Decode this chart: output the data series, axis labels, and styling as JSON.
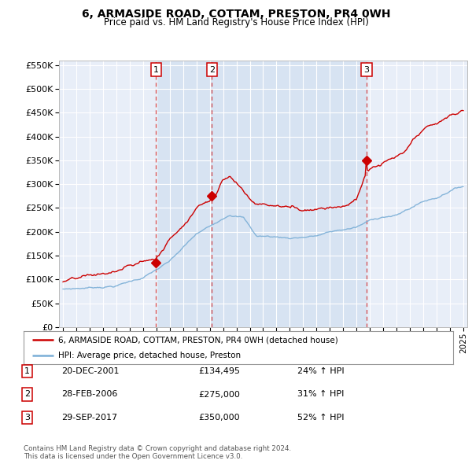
{
  "title": "6, ARMASIDE ROAD, COTTAM, PRESTON, PR4 0WH",
  "subtitle": "Price paid vs. HM Land Registry's House Price Index (HPI)",
  "sale_color": "#cc0000",
  "hpi_color": "#7aaed6",
  "vline_color": "#cc0000",
  "shade_color": "#d0dff0",
  "background_color": "#ffffff",
  "plot_bg_color": "#e8eef8",
  "grid_color": "#ffffff",
  "ylim": [
    0,
    560000
  ],
  "yticks": [
    0,
    50000,
    100000,
    150000,
    200000,
    250000,
    300000,
    350000,
    400000,
    450000,
    500000,
    550000
  ],
  "xlim": [
    1994.7,
    2025.3
  ],
  "sales": [
    {
      "date_num": 2001.97,
      "price": 134495,
      "label": "1"
    },
    {
      "date_num": 2006.16,
      "price": 275000,
      "label": "2"
    },
    {
      "date_num": 2017.75,
      "price": 350000,
      "label": "3"
    }
  ],
  "legend_sale_label": "6, ARMASIDE ROAD, COTTAM, PRESTON, PR4 0WH (detached house)",
  "legend_hpi_label": "HPI: Average price, detached house, Preston",
  "table_rows": [
    {
      "num": "1",
      "date": "20-DEC-2001",
      "price": "£134,495",
      "change": "24% ↑ HPI"
    },
    {
      "num": "2",
      "date": "28-FEB-2006",
      "price": "£275,000",
      "change": "31% ↑ HPI"
    },
    {
      "num": "3",
      "date": "29-SEP-2017",
      "price": "£350,000",
      "change": "52% ↑ HPI"
    }
  ],
  "footer": "Contains HM Land Registry data © Crown copyright and database right 2024.\nThis data is licensed under the Open Government Licence v3.0."
}
